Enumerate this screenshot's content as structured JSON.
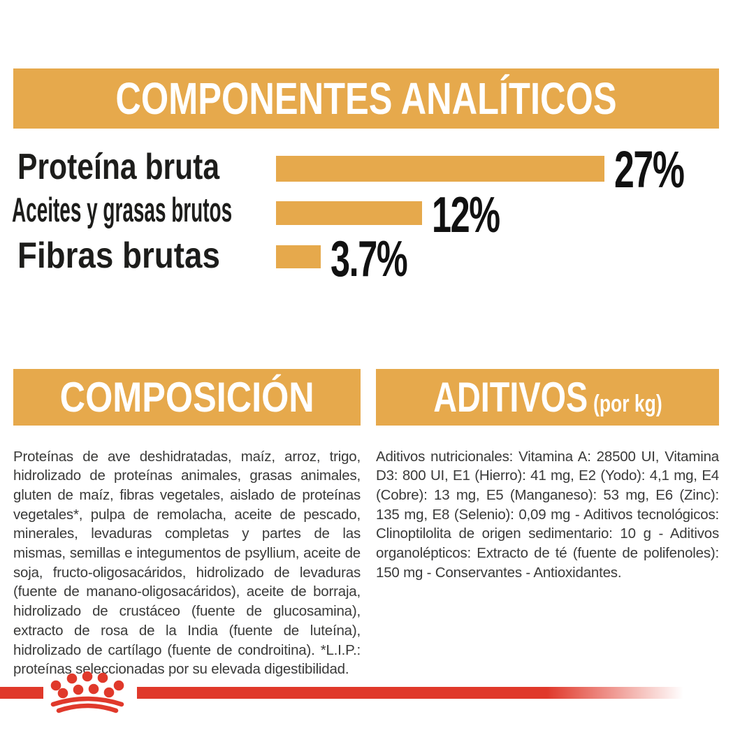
{
  "colors": {
    "gold": "#E6A94C",
    "red": "#E0392B",
    "banner_text": "#FFFFFF",
    "label_text": "#1D1D1B",
    "body_text": "#3A3A39"
  },
  "header": {
    "title": "COMPONENTES ANALÍTICOS"
  },
  "chart_data": {
    "type": "bar",
    "orientation": "horizontal",
    "title": "COMPONENTES ANALÍTICOS",
    "categories": [
      "Proteína bruta",
      "Aceites y grasas brutos",
      "Fibras brutas"
    ],
    "values": [
      27,
      12,
      3.7
    ],
    "value_labels": [
      "27%",
      "12%",
      "3.7%"
    ],
    "unit": "%",
    "xlim": [
      0,
      30
    ],
    "bar_color": "#E6A94C",
    "grid": false,
    "legend": false
  },
  "composition": {
    "title": "COMPOSICIÓN",
    "body": "Proteínas de ave deshidratadas, maíz, arroz, trigo, hidrolizado de proteínas animales, grasas animales, gluten de maíz, fibras vegetales, aislado de proteínas vegetales*, pulpa de remolacha, aceite de pescado, minerales, levaduras completas y partes de las mismas, semillas e integumentos de psyllium, aceite de soja, fructo-oligosacáridos, hidrolizado de levaduras (fuente de manano-oligosacáridos), aceite de borraja, hidrolizado de crustáceo (fuente de glucosamina), extracto de rosa de la India (fuente de luteína), hidrolizado de cartílago (fuente de condroitina). *L.I.P.: proteínas seleccionadas por su elevada digestibilidad."
  },
  "additives": {
    "title": "ADITIVOS",
    "title_suffix": "(por kg)",
    "body": "Aditivos nutricionales: Vitamina A: 28500 UI, Vitamina D3: 800 UI, E1 (Hierro): 41 mg, E2 (Yodo): 4,1 mg, E4 (Cobre): 13 mg, E5 (Manganeso): 53 mg, E6 (Zinc): 135 mg, E8 (Selenio): 0,09 mg - Aditivos tecnológicos: Clinoptilolita de origen sedimentario: 10 g - Aditivos organolépticos: Extracto de té (fuente de polifenoles): 150 mg - Conservantes - Antioxidantes."
  },
  "footer": {
    "logo": "royal-canin-crown"
  }
}
